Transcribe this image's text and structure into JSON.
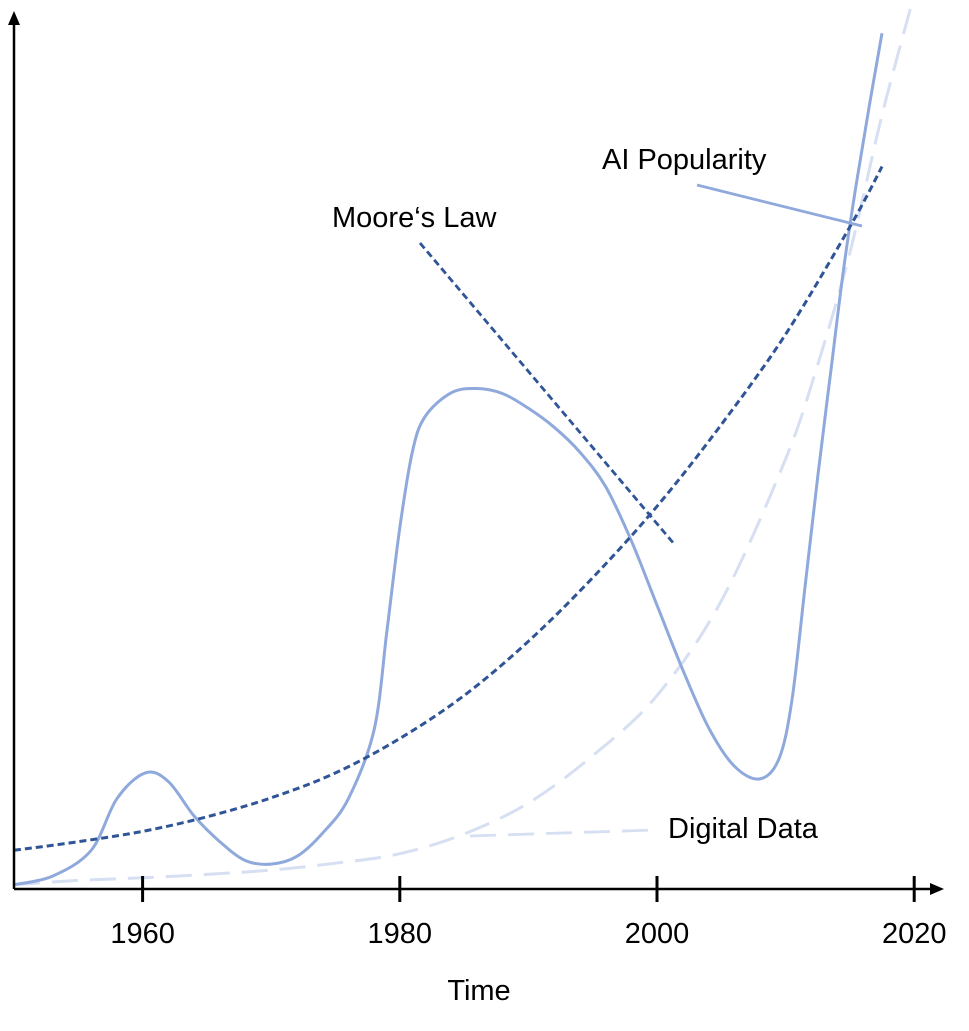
{
  "chart_data": {
    "type": "line",
    "title": "",
    "xlabel": "Time",
    "ylabel": "",
    "xlim": [
      1950,
      2021
    ],
    "ylim": [
      0,
      100
    ],
    "x_ticks": [
      "1960",
      "1980",
      "2000",
      "2020"
    ],
    "grid": false,
    "legend": "none (series labelled directly with leader lines)",
    "series": [
      {
        "name": "AI Popularity",
        "key": "ai",
        "color": "#8fa9dc",
        "style": "solid",
        "x": [
          1950,
          1953,
          1956,
          1958,
          1960.2,
          1962,
          1964,
          1966,
          1968,
          1970,
          1972,
          1974,
          1976,
          1978,
          1979,
          1980,
          1981,
          1982,
          1984,
          1986,
          1988,
          1990,
          1992,
          1994,
          1996,
          1998,
          2000,
          2002,
          2004,
          2006,
          2008,
          2009.5,
          2010.5,
          2011.5,
          2012.5,
          2013.5,
          2014.5,
          2015.5,
          2016.5,
          2017.5
        ],
        "y": [
          0.5,
          1.5,
          4.5,
          10.5,
          13.5,
          12.5,
          8.5,
          5.5,
          3.3,
          2.9,
          3.8,
          6.5,
          10.5,
          18.5,
          30,
          42,
          51,
          55,
          57.7,
          58.2,
          57.6,
          55.9,
          53.7,
          50.8,
          46.8,
          40.5,
          33,
          25.5,
          18.8,
          14.3,
          12.8,
          15.2,
          22,
          35,
          48,
          60,
          72,
          82,
          91,
          99.5
        ]
      },
      {
        "name": "Moore’s Law",
        "key": "moore",
        "color": "#2f5597",
        "style": "short-dash",
        "x": [
          1950,
          1955,
          1960,
          1965,
          1970,
          1975,
          1980,
          1985,
          1990,
          1995,
          2000,
          2005,
          2010,
          2015,
          2017.5
        ],
        "y": [
          4.5,
          5.5,
          6.7,
          8.4,
          10.6,
          13.5,
          17.5,
          22.5,
          28.8,
          36.2,
          44.5,
          54,
          64.5,
          77,
          84
        ]
      },
      {
        "name": "Digital Data",
        "key": "data",
        "color": "#d6e0f2",
        "style": "long-dash",
        "x": [
          1950,
          1955,
          1960,
          1965,
          1970,
          1975,
          1980,
          1985,
          1990,
          1995,
          2000,
          2005,
          2010,
          2012.5,
          2015,
          2017.5,
          2020
        ],
        "y": [
          0.5,
          1.0,
          1.3,
          1.7,
          2.2,
          3.0,
          4.1,
          6.4,
          10.0,
          15.5,
          22.5,
          33.5,
          50,
          61,
          74,
          90,
          104
        ]
      }
    ],
    "annotations": [
      {
        "key": "ai",
        "text": "AI Popularity"
      },
      {
        "key": "moore",
        "text": "Moore‘s Law"
      },
      {
        "key": "data",
        "text": "Digital Data"
      }
    ]
  }
}
